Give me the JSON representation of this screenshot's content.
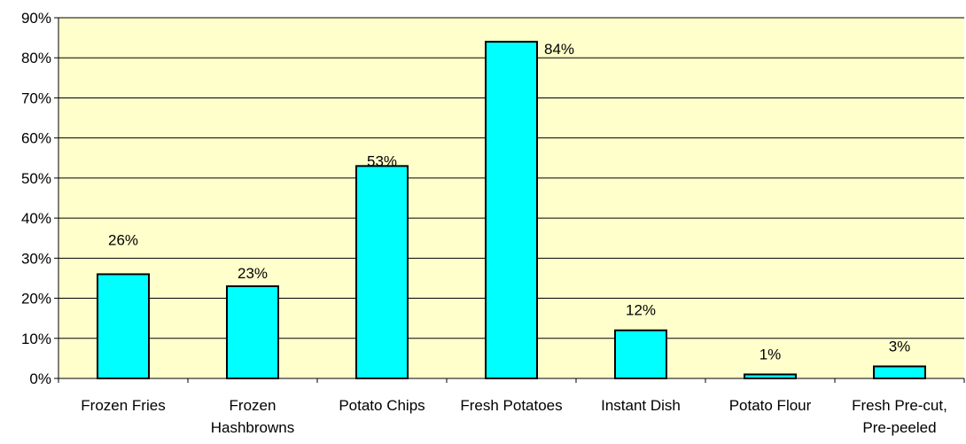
{
  "chart_data": {
    "type": "bar",
    "title": "",
    "xlabel": "",
    "ylabel": "",
    "categories": [
      [
        "Frozen Fries"
      ],
      [
        "Frozen",
        "Hashbrowns"
      ],
      [
        "Potato Chips"
      ],
      [
        "Fresh Potatoes"
      ],
      [
        "Instant Dish"
      ],
      [
        "Potato Flour"
      ],
      [
        "Fresh Pre-cut,",
        "Pre-peeled"
      ]
    ],
    "values": [
      26,
      23,
      53,
      84,
      12,
      1,
      3
    ],
    "data_labels": [
      "26%",
      "23%",
      "53%",
      "84%",
      "12%",
      "1%",
      "3%"
    ],
    "ylim": [
      0,
      90
    ],
    "y_ticks": [
      0,
      10,
      20,
      30,
      40,
      50,
      60,
      70,
      80,
      90
    ],
    "y_tick_labels": [
      "0%",
      "10%",
      "20%",
      "30%",
      "40%",
      "50%",
      "60%",
      "70%",
      "80%",
      "90%"
    ],
    "grid": true,
    "legend": "none",
    "colors": {
      "plot_background": "#FFFFCC",
      "bar_fill": "#00FFFF",
      "bar_stroke": "#000000",
      "gridline": "#000000",
      "axis": "#000000",
      "text": "#000000"
    }
  }
}
